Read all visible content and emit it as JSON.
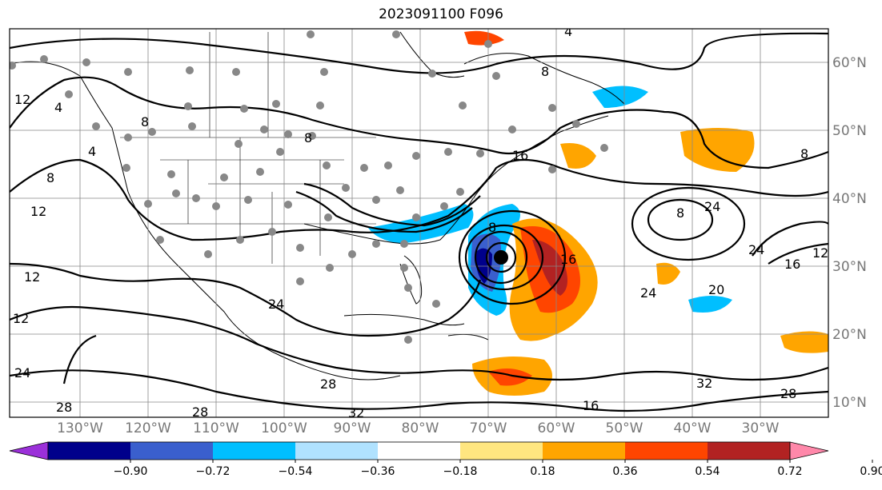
{
  "title": "2023091100 F096",
  "lon_labels": [
    "130°W",
    "120°W",
    "110°W",
    "100°W",
    "90°W",
    "80°W",
    "70°W",
    "60°W",
    "50°W",
    "40°W",
    "30°W"
  ],
  "lat_labels": [
    "60°N",
    "50°N",
    "40°N",
    "30°N",
    "20°N",
    "10°N"
  ],
  "colorbar": {
    "ticks": [
      "−0.90",
      "−0.72",
      "−0.54",
      "−0.36",
      "−0.18",
      "0.18",
      "0.36",
      "0.54",
      "0.72",
      "0.90"
    ],
    "colors": [
      "#9b30d9",
      "#00008b",
      "#3a5fcd",
      "#00bfff",
      "#b0e2ff",
      "#ffffff",
      "#ffe680",
      "#ffa500",
      "#ff4500",
      "#b22222",
      "#ff88aa"
    ]
  },
  "contour_labels": [
    "12",
    "4",
    "8",
    "4",
    "8",
    "12",
    "12",
    "12",
    "24",
    "28",
    "28",
    "32",
    "28",
    "24",
    "8",
    "8",
    "4",
    "8",
    "16",
    "16",
    "24",
    "24",
    "20",
    "16",
    "12",
    "8",
    "24",
    "32",
    "28",
    "16",
    "8"
  ],
  "colors": {
    "land": "#f8f8f8",
    "obs_dot": "#888888",
    "storm_center": "#000000"
  }
}
